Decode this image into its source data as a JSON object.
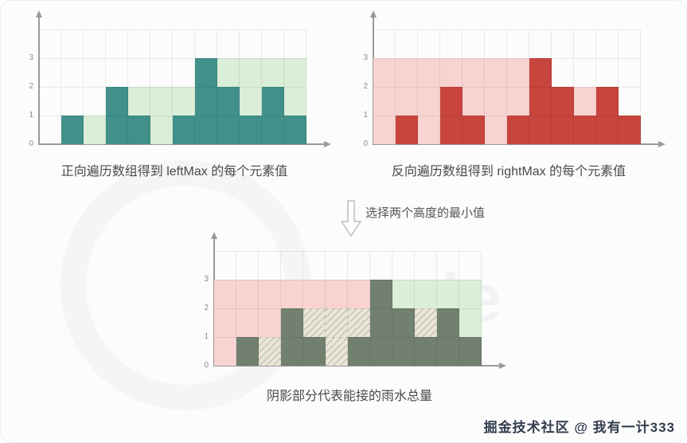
{
  "page": {
    "arrow_label": "选择两个高度的最小值",
    "footer_watermark": "掘金技术社区 @ 我有一计333",
    "background_watermark_text": "code"
  },
  "colors": {
    "teal": "#41918a",
    "light_green": "#dbeed8",
    "red": "#c7453d",
    "light_pink": "#f8d3d1",
    "dark_sage": "#71806f",
    "water_beige": "#eae5d6",
    "grid_line": "#e6e6e6",
    "axis": "#9a9a9a",
    "caption_text": "#4a4a4a",
    "watermark_text": "#333d4d"
  },
  "chart_data": {
    "left": {
      "type": "bar",
      "title": "正向遍历数组得到 leftMax 的每个元素值",
      "y_ticks": [
        0,
        1,
        2,
        3
      ],
      "ylim": [
        0,
        3
      ],
      "rows_total": 4,
      "layers": [
        {
          "name": "height",
          "color": "teal",
          "values": [
            0,
            1,
            0,
            2,
            1,
            0,
            1,
            3,
            2,
            1,
            2,
            1
          ]
        },
        {
          "name": "leftMax",
          "color": "light_green",
          "values": [
            0,
            1,
            1,
            2,
            2,
            2,
            2,
            3,
            3,
            3,
            3,
            3
          ]
        }
      ]
    },
    "right": {
      "type": "bar",
      "title": "反向遍历数组得到 rightMax 的每个元素值",
      "y_ticks": [
        0,
        1,
        2,
        3
      ],
      "ylim": [
        0,
        3
      ],
      "rows_total": 4,
      "layers": [
        {
          "name": "height",
          "color": "red",
          "values": [
            0,
            1,
            0,
            2,
            1,
            0,
            1,
            3,
            2,
            1,
            2,
            1
          ]
        },
        {
          "name": "rightMax",
          "color": "light_pink",
          "values": [
            3,
            3,
            3,
            3,
            3,
            3,
            3,
            3,
            2,
            2,
            2,
            1
          ]
        }
      ]
    },
    "bottom": {
      "type": "bar",
      "title": "阴影部分代表能接的雨水总量",
      "y_ticks": [
        0,
        1,
        2,
        3
      ],
      "ylim": [
        0,
        3
      ],
      "rows_total": 4,
      "layers": [
        {
          "name": "height",
          "color": "dark_sage",
          "values": [
            0,
            1,
            0,
            2,
            1,
            0,
            1,
            3,
            2,
            1,
            2,
            1
          ]
        },
        {
          "name": "trapped_water",
          "color": "water_beige",
          "hatch": true,
          "values": [
            0,
            1,
            1,
            2,
            2,
            2,
            2,
            3,
            2,
            2,
            2,
            1
          ]
        },
        {
          "name": "rightMax",
          "color": "light_pink",
          "values": [
            3,
            3,
            3,
            3,
            3,
            3,
            3,
            3,
            2,
            2,
            2,
            1
          ]
        },
        {
          "name": "leftMax",
          "color": "light_green",
          "values": [
            0,
            1,
            1,
            2,
            2,
            2,
            2,
            3,
            3,
            3,
            3,
            3
          ]
        }
      ]
    }
  }
}
